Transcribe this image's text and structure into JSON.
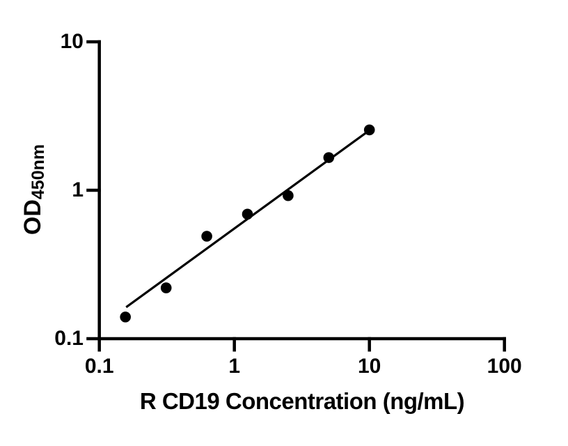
{
  "figure": {
    "background_color": "#ffffff",
    "axis_color": "#000000",
    "marker_color": "#000000",
    "trendline_color": "#000000"
  },
  "chart_data": {
    "type": "scatter",
    "title": "",
    "xlabel": "R CD19 Concentration (ng/mL)",
    "ylabel_main": "OD",
    "ylabel_sub": "450nm",
    "x_scale": "log",
    "y_scale": "log",
    "xlim": [
      0.1,
      100
    ],
    "ylim": [
      0.1,
      10
    ],
    "x_ticks": [
      0.1,
      1,
      10,
      100
    ],
    "x_tick_labels": [
      "0.1",
      "1",
      "10",
      "100"
    ],
    "y_ticks": [
      0.1,
      1,
      10
    ],
    "y_tick_labels": [
      "0.1",
      "1",
      "10"
    ],
    "grid": false,
    "legend": null,
    "points": [
      {
        "x": 0.156,
        "y": 0.14
      },
      {
        "x": 0.3125,
        "y": 0.22
      },
      {
        "x": 0.625,
        "y": 0.49
      },
      {
        "x": 1.25,
        "y": 0.69
      },
      {
        "x": 2.5,
        "y": 0.92
      },
      {
        "x": 5,
        "y": 1.66
      },
      {
        "x": 10,
        "y": 2.55
      }
    ],
    "trendline": {
      "x1": 0.158,
      "y1": 0.163,
      "x2": 10.1,
      "y2": 2.55
    }
  }
}
